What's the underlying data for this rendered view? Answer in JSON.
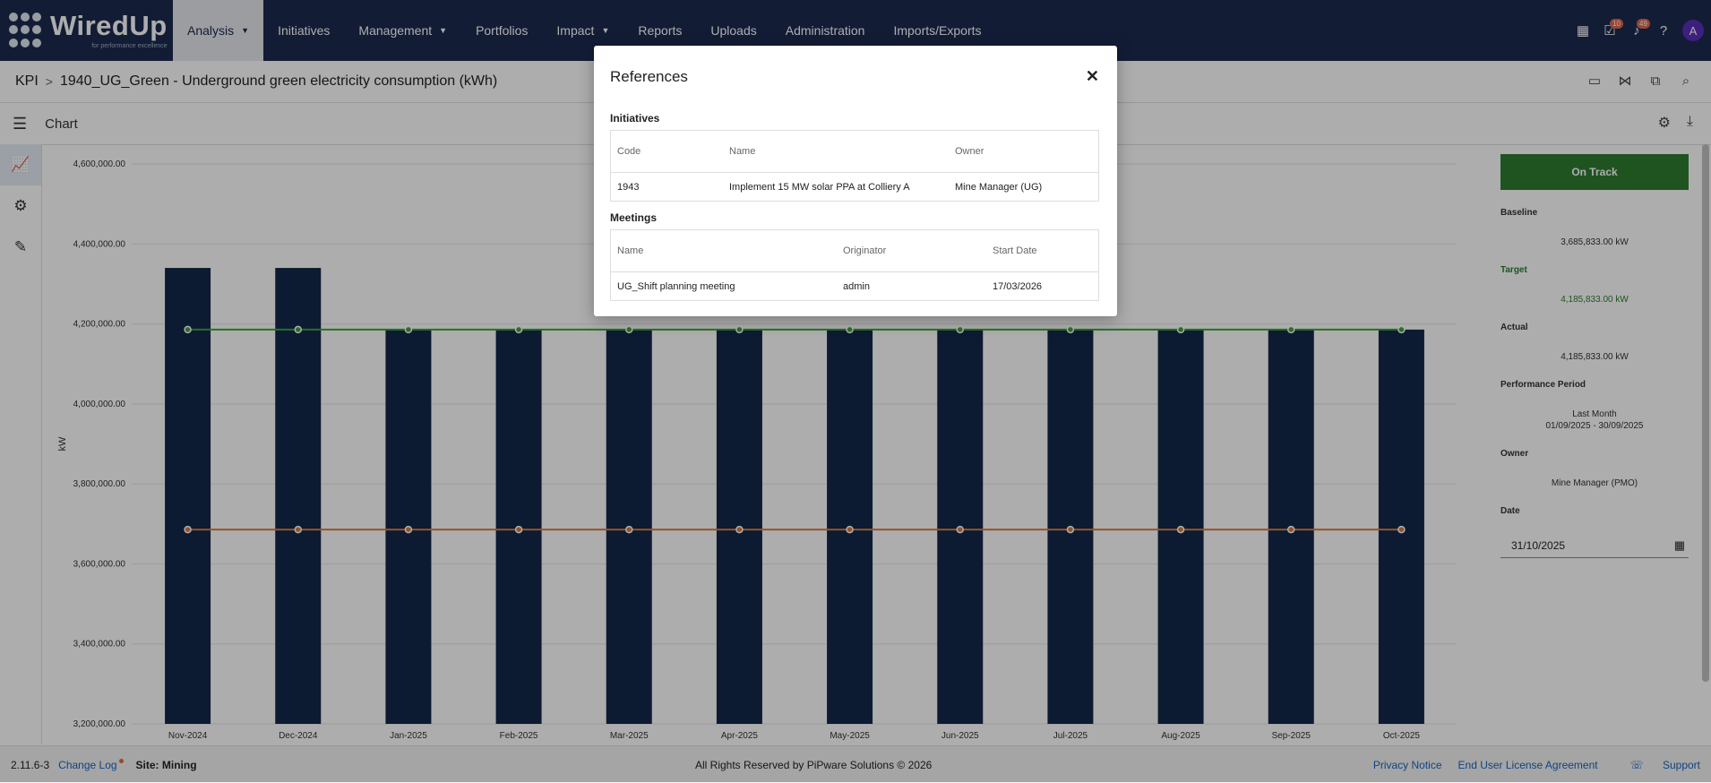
{
  "app": {
    "logo_text": "WiredUp",
    "logo_tagline": "for performance excellence"
  },
  "nav": {
    "items": [
      {
        "label": "Analysis",
        "dropdown": true,
        "active": true
      },
      {
        "label": "Initiatives",
        "dropdown": false
      },
      {
        "label": "Management",
        "dropdown": true
      },
      {
        "label": "Portfolios",
        "dropdown": false
      },
      {
        "label": "Impact",
        "dropdown": true
      },
      {
        "label": "Reports",
        "dropdown": false
      },
      {
        "label": "Uploads",
        "dropdown": false
      },
      {
        "label": "Administration",
        "dropdown": false
      },
      {
        "label": "Imports/Exports",
        "dropdown": false
      }
    ],
    "tasks_badge": "10",
    "notifications_badge": "49",
    "avatar_initial": "A"
  },
  "breadcrumb": {
    "root": "KPI",
    "current": "1940_UG_Green - Underground green electricity consumption (kWh)"
  },
  "subheader": {
    "title": "Chart"
  },
  "chart_data": {
    "type": "bar",
    "categories": [
      "Nov-2024",
      "Dec-2024",
      "Jan-2025",
      "Feb-2025",
      "Mar-2025",
      "Apr-2025",
      "May-2025",
      "Jun-2025",
      "Jul-2025",
      "Aug-2025",
      "Sep-2025",
      "Oct-2025"
    ],
    "series": [
      {
        "type": "bar",
        "color": "#13284a",
        "values": [
          4340000,
          4340000,
          4185833,
          4185833,
          4185833,
          4185833,
          4185833,
          4185833,
          4185833,
          4185833,
          4185833,
          4185833
        ]
      },
      {
        "type": "line",
        "color": "#3aa635",
        "values": [
          4185833,
          4185833,
          4185833,
          4185833,
          4185833,
          4185833,
          4185833,
          4185833,
          4185833,
          4185833,
          4185833,
          4185833
        ]
      },
      {
        "type": "line",
        "color": "#e07b39",
        "values": [
          3685833,
          3685833,
          3685833,
          3685833,
          3685833,
          3685833,
          3685833,
          3685833,
          3685833,
          3685833,
          3685833,
          3685833
        ]
      }
    ],
    "ylabel": "kW",
    "ylim": [
      3200000,
      4600000
    ],
    "yticks": [
      "3,200,000.00",
      "3,400,000.00",
      "3,600,000.00",
      "3,800,000.00",
      "4,000,000.00",
      "4,200,000.00",
      "4,400,000.00",
      "4,600,000.00"
    ],
    "grid": true
  },
  "panel": {
    "status": "On Track",
    "baseline_label": "Baseline",
    "baseline_value": "3,685,833.00 kW",
    "target_label": "Target",
    "target_value": "4,185,833.00 kW",
    "actual_label": "Actual",
    "actual_value": "4,185,833.00 kW",
    "period_label": "Performance Period",
    "period_name": "Last Month",
    "period_range": "01/09/2025 - 30/09/2025",
    "owner_label": "Owner",
    "owner_value": "Mine Manager (PMO)",
    "date_label": "Date",
    "date_value": "31/10/2025"
  },
  "footer": {
    "version": "2.11.6-3",
    "changelog": "Change Log",
    "site": "Site: Mining",
    "copyright": "All Rights Reserved by PiPware Solutions © 2026",
    "privacy": "Privacy Notice",
    "eula": "End User License Agreement",
    "support": "Support"
  },
  "modal": {
    "title": "References",
    "initiatives_heading": "Initiatives",
    "initiatives_headers": {
      "code": "Code",
      "name": "Name",
      "owner": "Owner"
    },
    "initiatives_row": {
      "code": "1943",
      "name": "Implement 15 MW solar PPA at Colliery A",
      "owner": "Mine Manager (UG)"
    },
    "meetings_heading": "Meetings",
    "meetings_headers": {
      "name": "Name",
      "originator": "Originator",
      "start_date": "Start Date"
    },
    "meetings_row": {
      "name": "UG_Shift planning meeting",
      "originator": "admin",
      "start_date": "17/03/2026"
    }
  }
}
